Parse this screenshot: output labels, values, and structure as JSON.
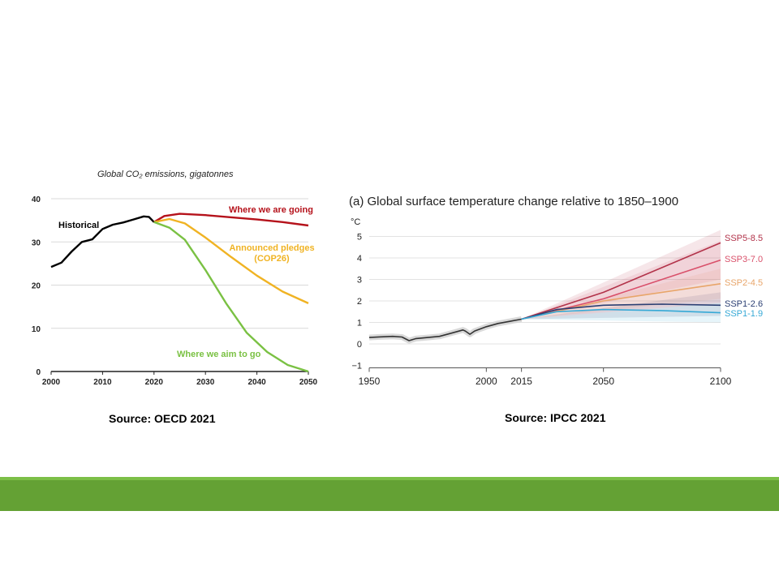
{
  "colors": {
    "historical": "#000000",
    "going": "#b5121b",
    "pledges": "#f0b323",
    "aim": "#7ac143",
    "ssp585": "#b2334a",
    "ssp370": "#d9506a",
    "ssp245": "#e8a56a",
    "ssp126": "#2b3f73",
    "ssp119": "#36a9d6",
    "obs": "#333333",
    "footer": "#64a134"
  },
  "captions": {
    "left": "Source: OECD 2021",
    "right": "Source: IPCC 2021"
  },
  "chart_data": [
    {
      "type": "line",
      "title": "Global CO₂ emissions, gigatonnes",
      "xlim": [
        2000,
        2050
      ],
      "ylim": [
        0,
        40
      ],
      "xticks": [
        2000,
        2010,
        2020,
        2030,
        2040,
        2050
      ],
      "yticks": [
        0,
        10,
        20,
        30,
        40
      ],
      "grid": "horizontal",
      "series": [
        {
          "name": "Historical",
          "key": "historical",
          "x": [
            2000,
            2002,
            2004,
            2006,
            2008,
            2010,
            2012,
            2014,
            2016,
            2018,
            2019,
            2020
          ],
          "y": [
            24.2,
            25.2,
            27.8,
            30.0,
            30.6,
            33.0,
            34.0,
            34.5,
            35.2,
            35.9,
            35.8,
            34.6
          ]
        },
        {
          "name": "Where we are going",
          "key": "going",
          "x": [
            2020,
            2022,
            2025,
            2030,
            2035,
            2040,
            2045,
            2050
          ],
          "y": [
            34.6,
            36.0,
            36.5,
            36.2,
            35.7,
            35.2,
            34.6,
            33.8
          ]
        },
        {
          "name": "Announced pledges (COP26)",
          "key": "pledges",
          "x": [
            2020,
            2023,
            2026,
            2030,
            2035,
            2040,
            2045,
            2050
          ],
          "y": [
            34.6,
            35.3,
            34.3,
            31.0,
            26.5,
            22.2,
            18.5,
            15.8
          ]
        },
        {
          "name": "Where we aim to go",
          "key": "aim",
          "x": [
            2020,
            2023,
            2026,
            2030,
            2034,
            2038,
            2042,
            2046,
            2050
          ],
          "y": [
            34.6,
            33.3,
            30.5,
            23.5,
            15.8,
            9.0,
            4.5,
            1.5,
            0.0
          ]
        }
      ],
      "annotations": {
        "historical": "Historical",
        "going": "Where we are going",
        "pledges_1": "Announced pledges",
        "pledges_2": "(COP26)",
        "aim": "Where we aim to go"
      }
    },
    {
      "type": "line",
      "title": "(a) Global surface temperature change relative to 1850–1900",
      "ylabel": "°C",
      "xlim": [
        1950,
        2100
      ],
      "ylim": [
        -1,
        5
      ],
      "xticks": [
        1950,
        2000,
        2015,
        2050,
        2100
      ],
      "yticks": [
        -1,
        0,
        1,
        2,
        3,
        4,
        5
      ],
      "ytick_labels": [
        "−1",
        "0",
        "1",
        "2",
        "3",
        "4",
        "5"
      ],
      "grid": "horizontal",
      "observed": {
        "x": [
          1950,
          1955,
          1960,
          1964,
          1967,
          1970,
          1975,
          1980,
          1985,
          1990,
          1991,
          1993,
          1995,
          2000,
          2005,
          2010,
          2015
        ],
        "y": [
          0.3,
          0.33,
          0.35,
          0.32,
          0.15,
          0.25,
          0.3,
          0.35,
          0.5,
          0.65,
          0.6,
          0.45,
          0.6,
          0.8,
          0.95,
          1.05,
          1.15
        ]
      },
      "series": [
        {
          "name": "SSP5-8.5",
          "key": "ssp585",
          "x": [
            2015,
            2050,
            2100
          ],
          "y": [
            1.15,
            2.4,
            4.7
          ],
          "band": [
            1.9,
            5.3
          ]
        },
        {
          "name": "SSP3-7.0",
          "key": "ssp370",
          "x": [
            2015,
            2050,
            2100
          ],
          "y": [
            1.15,
            2.1,
            3.9
          ],
          "band": [
            3.0,
            4.8
          ]
        },
        {
          "name": "SSP2-4.5",
          "key": "ssp245",
          "x": [
            2015,
            2050,
            2100
          ],
          "y": [
            1.15,
            2.0,
            2.8
          ],
          "band": [
            2.1,
            3.5
          ]
        },
        {
          "name": "SSP1-2.6",
          "key": "ssp126",
          "x": [
            2015,
            2030,
            2050,
            2075,
            2100
          ],
          "y": [
            1.15,
            1.6,
            1.8,
            1.85,
            1.8
          ],
          "band": [
            1.3,
            2.4
          ]
        },
        {
          "name": "SSP1-1.9",
          "key": "ssp119",
          "x": [
            2015,
            2030,
            2050,
            2075,
            2100
          ],
          "y": [
            1.15,
            1.5,
            1.6,
            1.55,
            1.45
          ],
          "band": [
            1.0,
            1.9
          ]
        }
      ]
    }
  ]
}
